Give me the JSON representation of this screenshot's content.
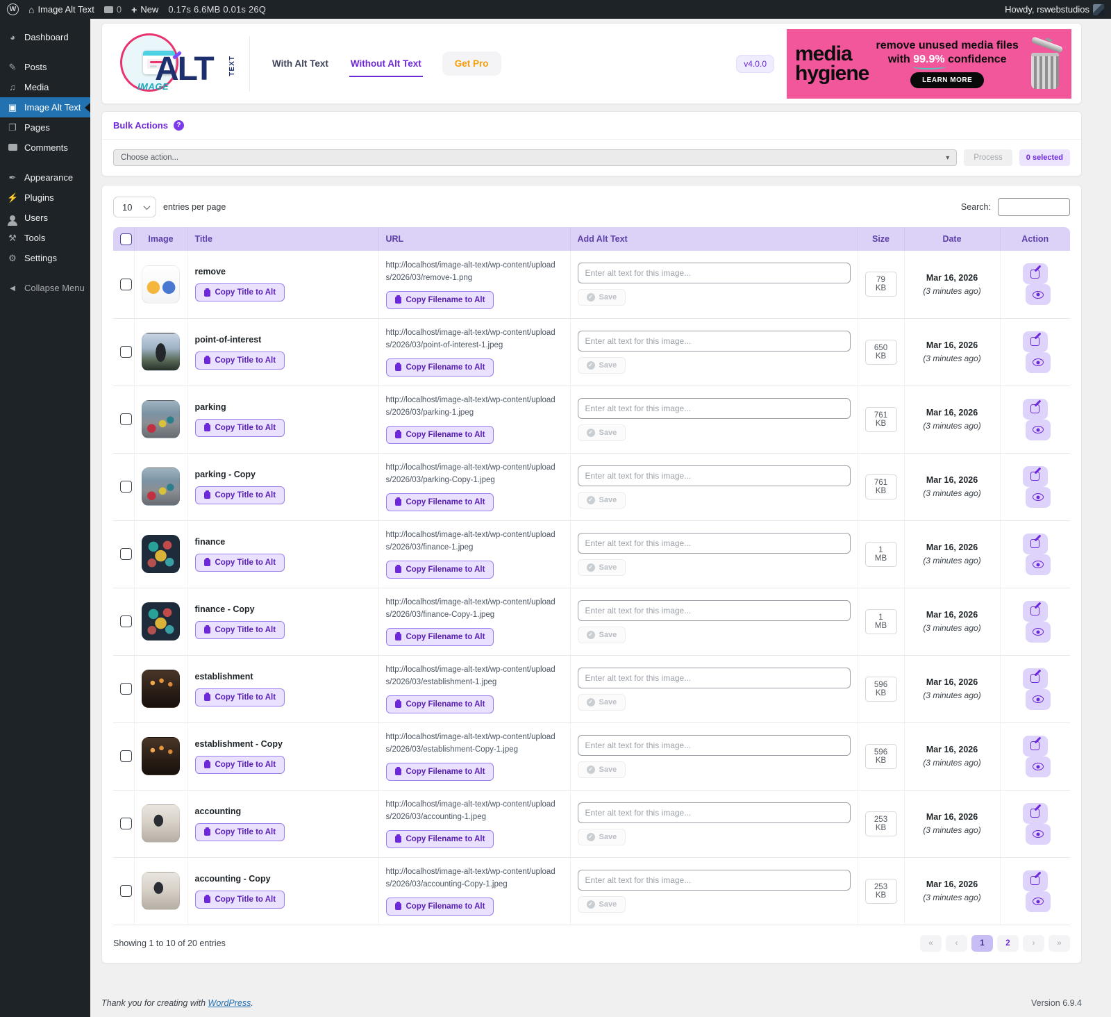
{
  "admin_bar": {
    "wp_glyph": "W",
    "site_name": "Image Alt Text",
    "comments_count": "0",
    "new_label": "New",
    "stats": "0.17s  6.6MB  0.01s  26Q",
    "howdy": "Howdy, rswebstudios"
  },
  "sidebar": {
    "items": [
      {
        "label": "Dashboard",
        "icon": "dashboard-icon"
      },
      {
        "label": "Posts",
        "icon": "posts-icon",
        "gap_before": true
      },
      {
        "label": "Media",
        "icon": "media-icon"
      },
      {
        "label": "Image Alt Text",
        "icon": "image-alt-text-icon",
        "active": true
      },
      {
        "label": "Pages",
        "icon": "pages-icon"
      },
      {
        "label": "Comments",
        "icon": "comments-icon"
      },
      {
        "label": "Appearance",
        "icon": "appearance-icon",
        "gap_before": true
      },
      {
        "label": "Plugins",
        "icon": "plugins-icon"
      },
      {
        "label": "Users",
        "icon": "users-icon"
      },
      {
        "label": "Tools",
        "icon": "tools-icon"
      },
      {
        "label": "Settings",
        "icon": "settings-icon"
      },
      {
        "label": "Collapse Menu",
        "icon": "collapse-icon",
        "gap_before": true,
        "muted": true
      }
    ]
  },
  "header": {
    "logo": {
      "image_word": "IMAGE",
      "alt_word": "ALT",
      "text_word": "TEXT"
    },
    "tabs": {
      "with_alt": "With Alt Text",
      "without_alt": "Without Alt Text",
      "get_pro": "Get Pro"
    },
    "version": "v4.0.0",
    "banner": {
      "brand_line1": "media",
      "brand_line2": "hygiene",
      "headline_line1": "remove unused media files",
      "headline_prefix": "with",
      "headline_highlight": "99.9%",
      "headline_suffix": "confidence",
      "cta": "LEARN MORE",
      "bg_color": "#f2579b"
    }
  },
  "bulk_actions": {
    "title": "Bulk Actions",
    "help_glyph": "?",
    "choose_placeholder": "Choose action...",
    "process_label": "Process",
    "selected_label": "0 selected"
  },
  "table_controls": {
    "per_page_value": "10",
    "per_page_label": "entries per page",
    "search_label": "Search:"
  },
  "table": {
    "columns": [
      "Image",
      "Title",
      "URL",
      "Add Alt Text",
      "Size",
      "Date",
      "Action"
    ],
    "alt_placeholder": "Enter alt text for this image...",
    "save_label": "Save",
    "copy_title_label": "Copy Title to Alt",
    "copy_filename_label": "Copy Filename to Alt",
    "accent_color": "#6d28d9",
    "rows": [
      {
        "title": "remove",
        "url": "http://localhost/image-alt-text/wp-content/uploads/2026/03/remove-1.png",
        "size": "79 KB",
        "date": "Mar 16, 2026",
        "ago": "(3 minutes ago)",
        "thumb": "remove"
      },
      {
        "title": "point-of-interest",
        "url": "http://localhost/image-alt-text/wp-content/uploads/2026/03/point-of-interest-1.jpeg",
        "size": "650 KB",
        "date": "Mar 16, 2026",
        "ago": "(3 minutes ago)",
        "thumb": "poi"
      },
      {
        "title": "parking",
        "url": "http://localhost/image-alt-text/wp-content/uploads/2026/03/parking-1.jpeg",
        "size": "761 KB",
        "date": "Mar 16, 2026",
        "ago": "(3 minutes ago)",
        "thumb": "parking"
      },
      {
        "title": "parking - Copy",
        "url": "http://localhost/image-alt-text/wp-content/uploads/2026/03/parking-Copy-1.jpeg",
        "size": "761 KB",
        "date": "Mar 16, 2026",
        "ago": "(3 minutes ago)",
        "thumb": "parking"
      },
      {
        "title": "finance",
        "url": "http://localhost/image-alt-text/wp-content/uploads/2026/03/finance-1.jpeg",
        "size": "1 MB",
        "date": "Mar 16, 2026",
        "ago": "(3 minutes ago)",
        "thumb": "finance"
      },
      {
        "title": "finance - Copy",
        "url": "http://localhost/image-alt-text/wp-content/uploads/2026/03/finance-Copy-1.jpeg",
        "size": "1 MB",
        "date": "Mar 16, 2026",
        "ago": "(3 minutes ago)",
        "thumb": "finance"
      },
      {
        "title": "establishment",
        "url": "http://localhost/image-alt-text/wp-content/uploads/2026/03/establishment-1.jpeg",
        "size": "596 KB",
        "date": "Mar 16, 2026",
        "ago": "(3 minutes ago)",
        "thumb": "establishment"
      },
      {
        "title": "establishment - Copy",
        "url": "http://localhost/image-alt-text/wp-content/uploads/2026/03/establishment-Copy-1.jpeg",
        "size": "596 KB",
        "date": "Mar 16, 2026",
        "ago": "(3 minutes ago)",
        "thumb": "establishment"
      },
      {
        "title": "accounting",
        "url": "http://localhost/image-alt-text/wp-content/uploads/2026/03/accounting-1.jpeg",
        "size": "253 KB",
        "date": "Mar 16, 2026",
        "ago": "(3 minutes ago)",
        "thumb": "accounting"
      },
      {
        "title": "accounting - Copy",
        "url": "http://localhost/image-alt-text/wp-content/uploads/2026/03/accounting-Copy-1.jpeg",
        "size": "253 KB",
        "date": "Mar 16, 2026",
        "ago": "(3 minutes ago)",
        "thumb": "accounting"
      }
    ]
  },
  "table_footer": {
    "showing": "Showing 1 to 10 of 20 entries",
    "pagination": [
      "«",
      "‹",
      "1",
      "2",
      "›",
      "»"
    ],
    "active_page": "1"
  },
  "page_footer": {
    "thanks_prefix": "Thank you for creating with ",
    "thanks_link": "WordPress",
    "thanks_suffix": ".",
    "version": "Version 6.9.4"
  }
}
